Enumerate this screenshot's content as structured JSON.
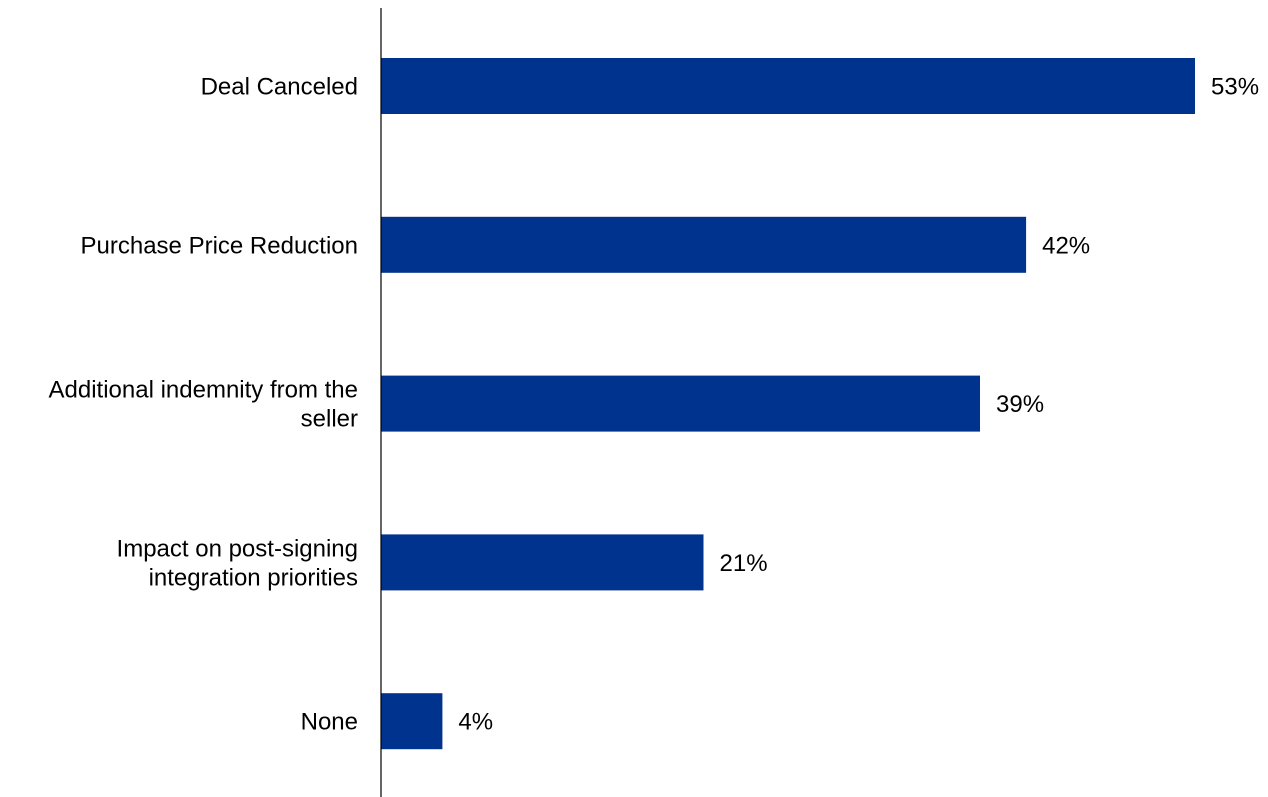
{
  "chart_data": {
    "type": "bar",
    "orientation": "horizontal",
    "categories": [
      "Deal Canceled",
      "Purchase Price Reduction",
      "Additional indemnity from the seller",
      "Impact on post-signing integration priorities",
      "None"
    ],
    "category_lines": [
      [
        "Deal Canceled"
      ],
      [
        "Purchase Price Reduction"
      ],
      [
        "Additional indemnity from the",
        "seller"
      ],
      [
        "Impact on post-signing",
        "integration priorities"
      ],
      [
        "None"
      ]
    ],
    "values": [
      53,
      42,
      39,
      21,
      4
    ],
    "value_labels": [
      "53%",
      "42%",
      "39%",
      "21%",
      "4%"
    ],
    "unit": "%",
    "xlim": [
      0,
      53
    ],
    "grid": false,
    "legend": "none",
    "bar_color": "#00338D",
    "axis_color": "#000000",
    "title": "",
    "xlabel": "",
    "ylabel": ""
  }
}
